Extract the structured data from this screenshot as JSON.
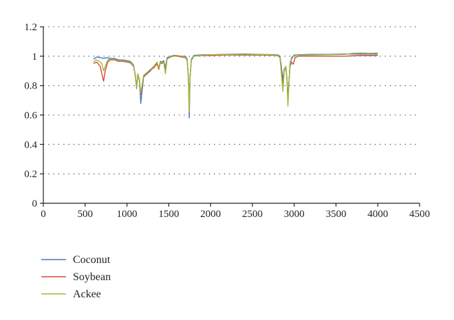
{
  "chart_data": {
    "type": "line",
    "title": "",
    "xlabel": "",
    "ylabel": "",
    "xlim": [
      0,
      4500
    ],
    "ylim": [
      0,
      1.2
    ],
    "xticks": [
      0,
      500,
      1000,
      1500,
      2000,
      2500,
      3000,
      3500,
      4000,
      4500
    ],
    "yticks": [
      0,
      0.2,
      0.4,
      0.6,
      0.8,
      1,
      1.2
    ],
    "xtick_labels": [
      "0",
      "500",
      "1000",
      "1500",
      "2000",
      "2500",
      "3000",
      "3500",
      "4000",
      "4500"
    ],
    "ytick_labels": [
      "0",
      "0.2",
      "0.4",
      "0.6",
      "0.8",
      "1",
      "1.2"
    ],
    "grid": "horizontal dotted",
    "legend_position": "bottom-left",
    "series": [
      {
        "name": "Coconut",
        "color": "#4a72c4",
        "points": [
          [
            600,
            0.98
          ],
          [
            640,
            0.995
          ],
          [
            680,
            0.99
          ],
          [
            720,
            0.985
          ],
          [
            760,
            0.99
          ],
          [
            800,
            0.985
          ],
          [
            850,
            0.985
          ],
          [
            900,
            0.975
          ],
          [
            950,
            0.975
          ],
          [
            1000,
            0.97
          ],
          [
            1040,
            0.965
          ],
          [
            1080,
            0.94
          ],
          [
            1100,
            0.87
          ],
          [
            1115,
            0.78
          ],
          [
            1130,
            0.87
          ],
          [
            1150,
            0.84
          ],
          [
            1165,
            0.68
          ],
          [
            1180,
            0.76
          ],
          [
            1200,
            0.86
          ],
          [
            1240,
            0.88
          ],
          [
            1280,
            0.9
          ],
          [
            1320,
            0.93
          ],
          [
            1360,
            0.95
          ],
          [
            1380,
            0.92
          ],
          [
            1400,
            0.965
          ],
          [
            1420,
            0.96
          ],
          [
            1440,
            0.97
          ],
          [
            1460,
            0.92
          ],
          [
            1480,
            0.99
          ],
          [
            1520,
            1.0
          ],
          [
            1560,
            1.005
          ],
          [
            1600,
            1.005
          ],
          [
            1650,
            1.0
          ],
          [
            1700,
            1.0
          ],
          [
            1720,
            0.98
          ],
          [
            1735,
            0.86
          ],
          [
            1745,
            0.58
          ],
          [
            1755,
            0.86
          ],
          [
            1770,
            0.98
          ],
          [
            1800,
            1.005
          ],
          [
            1900,
            1.01
          ],
          [
            2000,
            1.01
          ],
          [
            2200,
            1.012
          ],
          [
            2400,
            1.015
          ],
          [
            2600,
            1.012
          ],
          [
            2800,
            1.01
          ],
          [
            2830,
            1.0
          ],
          [
            2850,
            0.91
          ],
          [
            2865,
            0.84
          ],
          [
            2880,
            0.91
          ],
          [
            2900,
            0.93
          ],
          [
            2915,
            0.84
          ],
          [
            2925,
            0.72
          ],
          [
            2935,
            0.8
          ],
          [
            2950,
            0.95
          ],
          [
            2970,
            0.99
          ],
          [
            3000,
            1.008
          ],
          [
            3200,
            1.012
          ],
          [
            3400,
            1.012
          ],
          [
            3600,
            1.015
          ],
          [
            3800,
            1.015
          ],
          [
            4000,
            1.015
          ]
        ]
      },
      {
        "name": "Soybean",
        "color": "#d9473a",
        "points": [
          [
            600,
            0.95
          ],
          [
            640,
            0.96
          ],
          [
            680,
            0.93
          ],
          [
            700,
            0.88
          ],
          [
            720,
            0.83
          ],
          [
            740,
            0.9
          ],
          [
            770,
            0.96
          ],
          [
            800,
            0.975
          ],
          [
            850,
            0.975
          ],
          [
            900,
            0.965
          ],
          [
            950,
            0.965
          ],
          [
            1000,
            0.96
          ],
          [
            1040,
            0.955
          ],
          [
            1080,
            0.93
          ],
          [
            1100,
            0.86
          ],
          [
            1115,
            0.8
          ],
          [
            1130,
            0.88
          ],
          [
            1150,
            0.83
          ],
          [
            1165,
            0.74
          ],
          [
            1180,
            0.79
          ],
          [
            1200,
            0.87
          ],
          [
            1240,
            0.88
          ],
          [
            1280,
            0.91
          ],
          [
            1320,
            0.92
          ],
          [
            1360,
            0.95
          ],
          [
            1380,
            0.91
          ],
          [
            1400,
            0.955
          ],
          [
            1420,
            0.95
          ],
          [
            1440,
            0.96
          ],
          [
            1460,
            0.9
          ],
          [
            1480,
            0.98
          ],
          [
            1520,
            0.995
          ],
          [
            1560,
            1.0
          ],
          [
            1600,
            1.0
          ],
          [
            1650,
            0.995
          ],
          [
            1700,
            0.99
          ],
          [
            1720,
            0.97
          ],
          [
            1735,
            0.85
          ],
          [
            1745,
            0.65
          ],
          [
            1755,
            0.86
          ],
          [
            1770,
            0.97
          ],
          [
            1800,
            1.0
          ],
          [
            1900,
            1.005
          ],
          [
            2000,
            1.005
          ],
          [
            2200,
            1.008
          ],
          [
            2400,
            1.008
          ],
          [
            2600,
            1.008
          ],
          [
            2800,
            1.005
          ],
          [
            2830,
            0.99
          ],
          [
            2850,
            0.89
          ],
          [
            2865,
            0.8
          ],
          [
            2880,
            0.9
          ],
          [
            2900,
            0.92
          ],
          [
            2915,
            0.83
          ],
          [
            2925,
            0.68
          ],
          [
            2935,
            0.8
          ],
          [
            2950,
            0.93
          ],
          [
            2970,
            0.96
          ],
          [
            2990,
            0.945
          ],
          [
            3010,
            0.99
          ],
          [
            3050,
            1.0
          ],
          [
            3200,
            1.0
          ],
          [
            3400,
            1.0
          ],
          [
            3600,
            1.0
          ],
          [
            3800,
            1.005
          ],
          [
            4000,
            1.005
          ]
        ]
      },
      {
        "name": "Ackee",
        "color": "#9bbb3c",
        "points": [
          [
            600,
            0.96
          ],
          [
            630,
            0.975
          ],
          [
            660,
            0.97
          ],
          [
            700,
            0.95
          ],
          [
            720,
            0.9
          ],
          [
            740,
            0.93
          ],
          [
            770,
            0.975
          ],
          [
            800,
            0.98
          ],
          [
            850,
            0.98
          ],
          [
            900,
            0.97
          ],
          [
            950,
            0.97
          ],
          [
            1000,
            0.965
          ],
          [
            1040,
            0.96
          ],
          [
            1080,
            0.935
          ],
          [
            1100,
            0.87
          ],
          [
            1115,
            0.79
          ],
          [
            1130,
            0.88
          ],
          [
            1150,
            0.84
          ],
          [
            1165,
            0.75
          ],
          [
            1180,
            0.8
          ],
          [
            1200,
            0.87
          ],
          [
            1240,
            0.89
          ],
          [
            1280,
            0.91
          ],
          [
            1320,
            0.93
          ],
          [
            1360,
            0.96
          ],
          [
            1380,
            0.92
          ],
          [
            1400,
            0.96
          ],
          [
            1420,
            0.955
          ],
          [
            1440,
            0.96
          ],
          [
            1460,
            0.88
          ],
          [
            1480,
            0.98
          ],
          [
            1520,
            1.0
          ],
          [
            1560,
            1.0
          ],
          [
            1600,
            1.005
          ],
          [
            1650,
            1.0
          ],
          [
            1700,
            0.995
          ],
          [
            1720,
            0.975
          ],
          [
            1735,
            0.85
          ],
          [
            1745,
            0.62
          ],
          [
            1755,
            0.86
          ],
          [
            1770,
            0.975
          ],
          [
            1800,
            1.0
          ],
          [
            1900,
            1.008
          ],
          [
            2000,
            1.01
          ],
          [
            2200,
            1.01
          ],
          [
            2400,
            1.012
          ],
          [
            2600,
            1.012
          ],
          [
            2800,
            1.008
          ],
          [
            2830,
            0.99
          ],
          [
            2850,
            0.86
          ],
          [
            2865,
            0.76
          ],
          [
            2880,
            0.9
          ],
          [
            2900,
            0.93
          ],
          [
            2915,
            0.83
          ],
          [
            2925,
            0.66
          ],
          [
            2935,
            0.79
          ],
          [
            2950,
            0.94
          ],
          [
            2970,
            0.98
          ],
          [
            3000,
            1.005
          ],
          [
            3200,
            1.008
          ],
          [
            3400,
            1.01
          ],
          [
            3600,
            1.012
          ],
          [
            3700,
            1.02
          ],
          [
            3800,
            1.022
          ],
          [
            3900,
            1.02
          ],
          [
            4000,
            1.022
          ]
        ]
      }
    ]
  }
}
